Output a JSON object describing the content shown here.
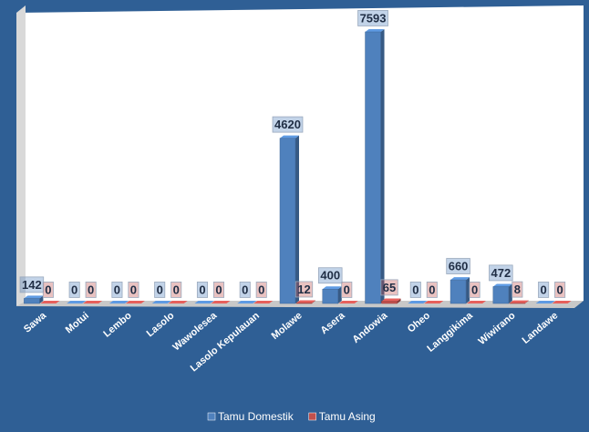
{
  "chart_data": {
    "type": "bar",
    "categories": [
      "Sawa",
      "Motui",
      "Lembo",
      "Lasolo",
      "Wawolesea",
      "Lasolo Kepulauan",
      "Molawe",
      "Asera",
      "Andowia",
      "Oheo",
      "Langgikima",
      "Wiwirano",
      "Landawe"
    ],
    "series": [
      {
        "name": "Tamu Domestik",
        "color": "#4f81bd",
        "values": [
          142,
          0,
          0,
          0,
          0,
          0,
          4620,
          400,
          7593,
          0,
          660,
          472,
          0
        ]
      },
      {
        "name": "Tamu Asing",
        "color": "#c0504d",
        "values": [
          0,
          0,
          0,
          0,
          0,
          0,
          12,
          0,
          65,
          0,
          0,
          8,
          0
        ]
      }
    ],
    "legend": "bottom"
  }
}
